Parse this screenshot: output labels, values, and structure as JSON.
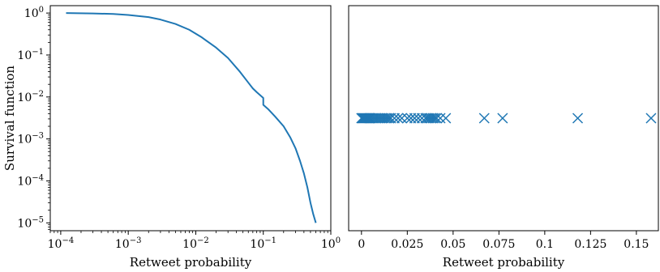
{
  "chart_data": [
    {
      "type": "line",
      "xlabel": "Retweet probability",
      "ylabel": "Survival function",
      "xscale": "log",
      "yscale": "log",
      "xlim": [
        7e-05,
        1.0
      ],
      "ylim": [
        6.5e-06,
        1.5
      ],
      "xticks": [
        {
          "base": "10",
          "exp": "−4",
          "value": 0.0001
        },
        {
          "base": "10",
          "exp": "−3",
          "value": 0.001
        },
        {
          "base": "10",
          "exp": "−2",
          "value": 0.01
        },
        {
          "base": "10",
          "exp": "−1",
          "value": 0.1
        },
        {
          "base": "10",
          "exp": "0",
          "value": 1
        }
      ],
      "yticks": [
        {
          "base": "10",
          "exp": "0",
          "value": 1
        },
        {
          "base": "10",
          "exp": "−1",
          "value": 0.1
        },
        {
          "base": "10",
          "exp": "−2",
          "value": 0.01
        },
        {
          "base": "10",
          "exp": "−3",
          "value": 0.001
        },
        {
          "base": "10",
          "exp": "−4",
          "value": 0.0001
        },
        {
          "base": "10",
          "exp": "−5",
          "value": 1e-05
        }
      ],
      "grid": false,
      "color": "#1f77b4",
      "series": [
        {
          "x": [
            0.00012,
            0.0003,
            0.0006,
            0.001,
            0.002,
            0.003,
            0.005,
            0.008,
            0.012,
            0.02,
            0.03,
            0.045,
            0.06,
            0.07,
            0.08,
            0.09,
            0.1,
            0.1,
            0.12,
            0.15,
            0.2,
            0.25,
            0.3,
            0.35,
            0.4,
            0.45,
            0.5,
            0.55,
            0.6
          ],
          "y": [
            1.0,
            0.98,
            0.95,
            0.9,
            0.8,
            0.7,
            0.55,
            0.4,
            0.27,
            0.15,
            0.085,
            0.04,
            0.022,
            0.016,
            0.013,
            0.011,
            0.0095,
            0.0065,
            0.005,
            0.0034,
            0.002,
            0.0011,
            0.0006,
            0.0003,
            0.00015,
            7e-05,
            3e-05,
            1.6e-05,
            1e-05
          ]
        }
      ]
    },
    {
      "type": "scatter",
      "xlabel": "Retweet probability",
      "ylabel": "",
      "xlim": [
        -0.007,
        0.162
      ],
      "xticks": [
        {
          "label": "0",
          "value": 0
        },
        {
          "label": "0.025",
          "value": 0.025
        },
        {
          "label": "0.05",
          "value": 0.05
        },
        {
          "label": "0.075",
          "value": 0.075
        },
        {
          "label": "0.1",
          "value": 0.1
        },
        {
          "label": "0.125",
          "value": 0.125
        },
        {
          "label": "0.15",
          "value": 0.15
        }
      ],
      "marker": "x",
      "color": "#1f77b4",
      "grid": false,
      "series": [
        {
          "x": [
            0.0,
            0.0005,
            0.001,
            0.0015,
            0.002,
            0.0025,
            0.003,
            0.0035,
            0.004,
            0.0045,
            0.005,
            0.006,
            0.007,
            0.008,
            0.009,
            0.01,
            0.011,
            0.012,
            0.013,
            0.014,
            0.015,
            0.016,
            0.018,
            0.02,
            0.022,
            0.025,
            0.027,
            0.029,
            0.031,
            0.033,
            0.035,
            0.036,
            0.037,
            0.038,
            0.039,
            0.04,
            0.041,
            0.043,
            0.046,
            0.067,
            0.077,
            0.118,
            0.158
          ]
        }
      ]
    }
  ]
}
